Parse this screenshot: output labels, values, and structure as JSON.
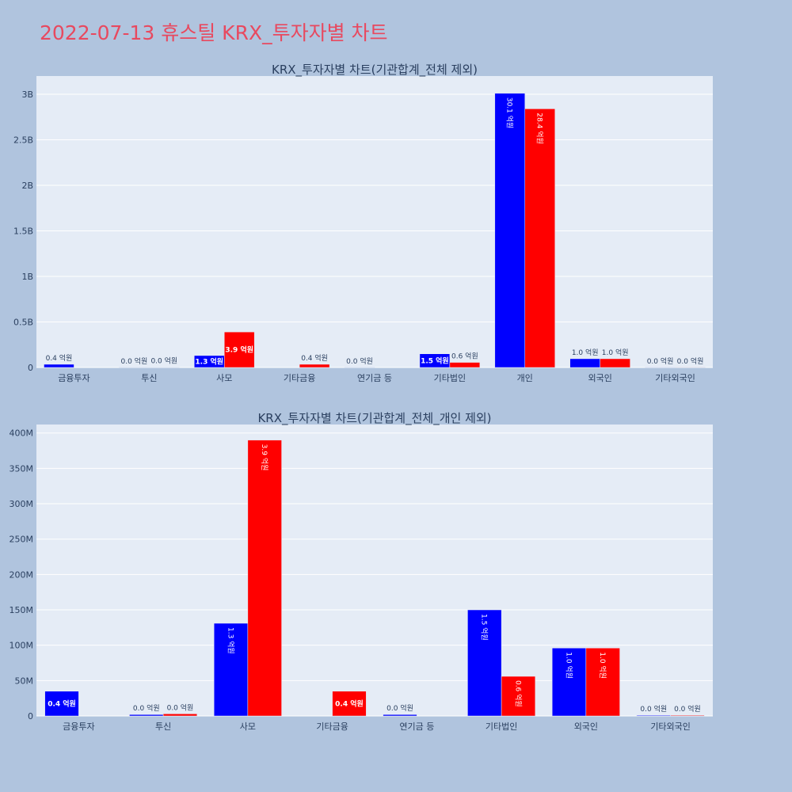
{
  "header": {
    "title": "2022-07-13 휴스틸 KRX_투자자별 차트"
  },
  "colors": {
    "background": "#b0c4de",
    "plot_background": "#e5ecf6",
    "title": "#e8495f",
    "series_a": "#0000ff",
    "series_b": "#ff0000"
  },
  "chart_data": [
    {
      "type": "bar",
      "title": "KRX_투자자별 차트(기관합계_전체 제외)",
      "categories": [
        "금융투자",
        "투신",
        "사모",
        "기타금융",
        "연기금 등",
        "기타법인",
        "개인",
        "외국인",
        "기타외국인"
      ],
      "ylim": [
        0,
        3200000000
      ],
      "yticks": [
        0,
        500000000,
        1000000000,
        1500000000,
        2000000000,
        2500000000,
        3000000000
      ],
      "ytick_labels": [
        "0",
        "0.5B",
        "1B",
        "1.5B",
        "2B",
        "2.5B",
        "3B"
      ],
      "grid": true,
      "series": [
        {
          "color": "#0000ff",
          "values": [
            35000000,
            2000000,
            131000000,
            null,
            2000000,
            150000000,
            3010000000,
            96000000,
            1000000
          ],
          "labels": [
            "0.4 억원",
            "0.0 억원",
            "1.3 억원",
            "",
            "0.0 억원",
            "1.5 억원",
            "30.1 억원",
            "1.0 억원",
            "0.0 억원"
          ]
        },
        {
          "color": "#ff0000",
          "values": [
            null,
            3000000,
            390000000,
            35000000,
            null,
            56000000,
            2840000000,
            96000000,
            1000000
          ],
          "labels": [
            "",
            "0.0 억원",
            "3.9 억원",
            "0.4 억원",
            "",
            "0.6 억원",
            "28.4 억원",
            "1.0 억원",
            "0.0 억원"
          ]
        }
      ]
    },
    {
      "type": "bar",
      "title": "KRX_투자자별 차트(기관합계_전체_개인 제외)",
      "categories": [
        "금융투자",
        "투신",
        "사모",
        "기타금융",
        "연기금 등",
        "기타법인",
        "외국인",
        "기타외국인"
      ],
      "ylim": [
        0,
        412000000
      ],
      "yticks": [
        0,
        50000000,
        100000000,
        150000000,
        200000000,
        250000000,
        300000000,
        350000000,
        400000000
      ],
      "ytick_labels": [
        "0",
        "50M",
        "100M",
        "150M",
        "200M",
        "250M",
        "300M",
        "350M",
        "400M"
      ],
      "grid": true,
      "series": [
        {
          "color": "#0000ff",
          "values": [
            35000000,
            2000000,
            131000000,
            null,
            2000000,
            150000000,
            96000000,
            1000000
          ],
          "labels": [
            "0.4 억원",
            "0.0 억원",
            "1.3 억원",
            "",
            "0.0 억원",
            "1.5 억원",
            "1.0 억원",
            "0.0 억원"
          ]
        },
        {
          "color": "#ff0000",
          "values": [
            null,
            3000000,
            390000000,
            35000000,
            null,
            56000000,
            96000000,
            1000000
          ],
          "labels": [
            "",
            "0.0 억원",
            "3.9 억원",
            "0.4 억원",
            "",
            "0.6 억원",
            "1.0 억원",
            "0.0 억원"
          ]
        }
      ]
    }
  ]
}
